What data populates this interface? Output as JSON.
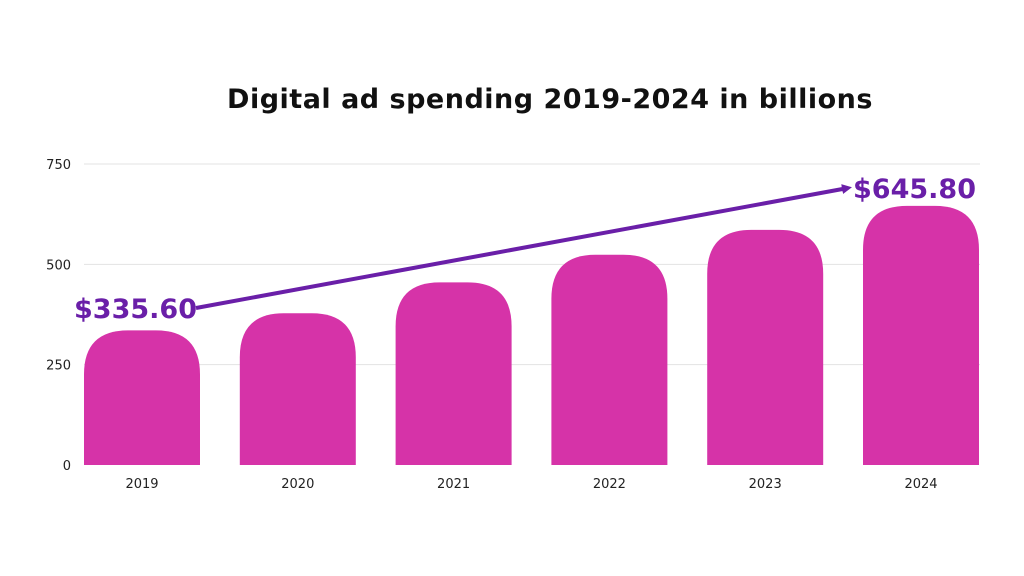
{
  "chart_data": {
    "type": "bar",
    "title": "Digital ad spending 2019-2024 in billions",
    "xlabel": "",
    "ylabel": "",
    "categories": [
      "2019",
      "2020",
      "2021",
      "2022",
      "2023",
      "2024"
    ],
    "values": [
      335.6,
      378,
      455,
      524,
      586,
      645.8
    ],
    "ylim": [
      0,
      750
    ],
    "yticks": [
      0,
      250,
      500,
      750
    ],
    "grid": true,
    "legend": "none",
    "bar_color": "#d633a8",
    "annotations": [
      {
        "label": "$335.60",
        "category": "2019"
      },
      {
        "label": "$645.80",
        "category": "2024"
      }
    ],
    "trend_arrow_color": "#6a1fa8"
  }
}
